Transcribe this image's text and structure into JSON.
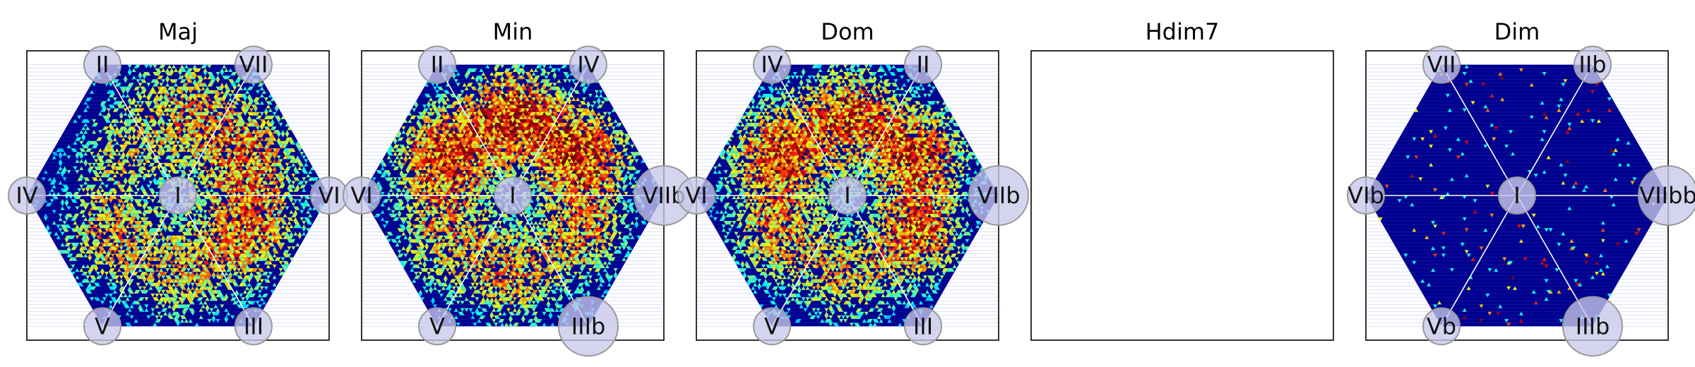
{
  "chart_data": [
    {
      "type": "heatmap",
      "title": "Maj",
      "center_label": "I",
      "vertex_labels": [
        "VII",
        "VI",
        "III",
        "V",
        "IV",
        "II"
      ],
      "grid": false,
      "colormap": "jet",
      "has_data": true,
      "hotspots": [
        {
          "sector": 0,
          "radius": 0.55,
          "spread": 0.28,
          "intensity": 0.55
        },
        {
          "sector": 1,
          "radius": 0.55,
          "spread": 0.26,
          "intensity": 0.6
        },
        {
          "sector": 2,
          "radius": 0.55,
          "spread": 0.24,
          "intensity": 0.45
        },
        {
          "sector": 3,
          "radius": 0.55,
          "spread": 0.24,
          "intensity": 0.55
        },
        {
          "sector": 4,
          "radius": 0.5,
          "spread": 0.22,
          "intensity": 0.35
        },
        {
          "sector": 5,
          "radius": 0.6,
          "spread": 0.3,
          "intensity": 0.5
        }
      ]
    },
    {
      "type": "heatmap",
      "title": "Min",
      "center_label": "I",
      "vertex_labels": [
        "IV",
        "VIIb",
        "IIIb",
        "V",
        "VI",
        "II"
      ],
      "grid": false,
      "colormap": "jet",
      "has_data": true,
      "hotspots": [
        {
          "sector": 0,
          "radius": 0.55,
          "spread": 0.24,
          "intensity": 0.8
        },
        {
          "sector": 1,
          "radius": 0.55,
          "spread": 0.22,
          "intensity": 0.55
        },
        {
          "sector": 2,
          "radius": 0.55,
          "spread": 0.24,
          "intensity": 0.55
        },
        {
          "sector": 3,
          "radius": 0.55,
          "spread": 0.26,
          "intensity": 0.5
        },
        {
          "sector": 4,
          "radius": 0.55,
          "spread": 0.24,
          "intensity": 0.75
        },
        {
          "sector": 5,
          "radius": 0.55,
          "spread": 0.24,
          "intensity": 0.8
        }
      ]
    },
    {
      "type": "heatmap",
      "title": "Dom",
      "center_label": "I",
      "vertex_labels": [
        "II",
        "VIIb",
        "III",
        "V",
        "VI",
        "IV"
      ],
      "grid": false,
      "colormap": "jet",
      "has_data": true,
      "hotspots": [
        {
          "sector": 0,
          "radius": 0.55,
          "spread": 0.24,
          "intensity": 0.75
        },
        {
          "sector": 1,
          "radius": 0.55,
          "spread": 0.22,
          "intensity": 0.7
        },
        {
          "sector": 2,
          "radius": 0.55,
          "spread": 0.24,
          "intensity": 0.5
        },
        {
          "sector": 3,
          "radius": 0.55,
          "spread": 0.24,
          "intensity": 0.55
        },
        {
          "sector": 4,
          "radius": 0.55,
          "spread": 0.24,
          "intensity": 0.75
        },
        {
          "sector": 5,
          "radius": 0.55,
          "spread": 0.24,
          "intensity": 0.7
        }
      ]
    },
    {
      "type": "heatmap",
      "title": "Hdim7",
      "center_label": "",
      "vertex_labels": [],
      "grid": false,
      "colormap": "jet",
      "has_data": false,
      "hotspots": []
    },
    {
      "type": "heatmap",
      "title": "Dim",
      "center_label": "I",
      "vertex_labels": [
        "IIb",
        "VIIbb",
        "IIIb",
        "Vb",
        "VIb",
        "VII"
      ],
      "grid": false,
      "colormap": "jet",
      "has_data": true,
      "sparse": true,
      "hotspots": []
    }
  ]
}
